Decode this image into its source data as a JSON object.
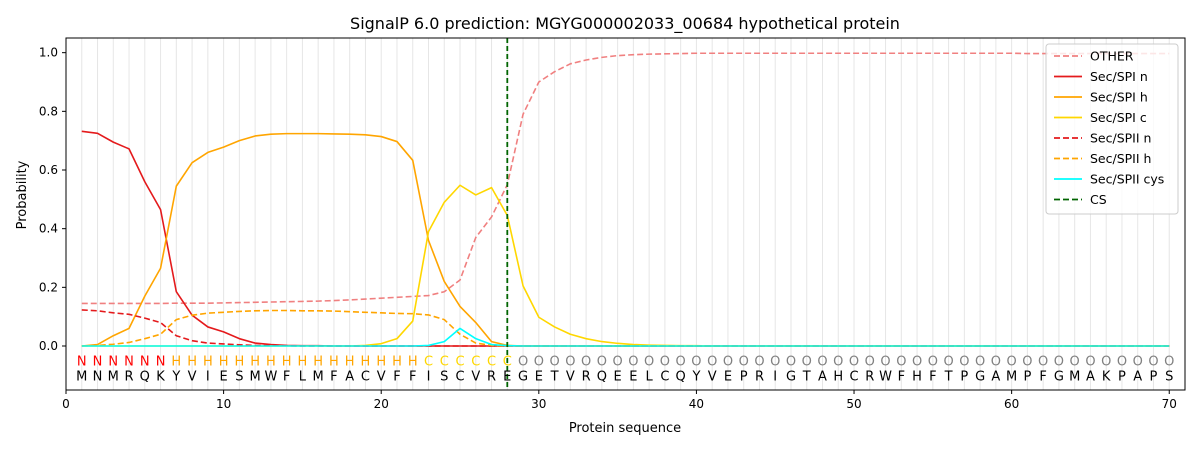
{
  "chart_data": {
    "type": "line",
    "title": "SignalP 6.0 prediction: MGYG000002033_00684 hypothetical protein",
    "xlabel": "Protein sequence",
    "ylabel": "Probability",
    "xlim": [
      0,
      71
    ],
    "ylim": [
      -0.15,
      1.05
    ],
    "x_ticks": [
      0,
      10,
      20,
      30,
      40,
      50,
      60,
      70
    ],
    "y_ticks": [
      0.0,
      0.2,
      0.4,
      0.6,
      0.8,
      1.0
    ],
    "y_tick_labels": [
      "0.0",
      "0.2",
      "0.4",
      "0.6",
      "0.8",
      "1.0"
    ],
    "legend_position": "top-right",
    "grid": "vertical lines at each residue",
    "sequence": [
      "M",
      "N",
      "M",
      "R",
      "Q",
      "K",
      "Y",
      "V",
      "I",
      "E",
      "S",
      "M",
      "W",
      "F",
      "L",
      "M",
      "F",
      "A",
      "C",
      "V",
      "F",
      "F",
      "I",
      "S",
      "C",
      "V",
      "R",
      "E",
      "G",
      "E",
      "T",
      "V",
      "R",
      "Q",
      "E",
      "E",
      "L",
      "C",
      "Q",
      "Y",
      "V",
      "E",
      "P",
      "R",
      "I",
      "G",
      "T",
      "A",
      "H",
      "C",
      "R",
      "W",
      "F",
      "H",
      "F",
      "T",
      "P",
      "G",
      "A",
      "M",
      "P",
      "F",
      "G",
      "M",
      "A",
      "K",
      "P",
      "A",
      "P",
      "S"
    ],
    "region_labels": [
      "N",
      "N",
      "N",
      "N",
      "N",
      "N",
      "H",
      "H",
      "H",
      "H",
      "H",
      "H",
      "H",
      "H",
      "H",
      "H",
      "H",
      "H",
      "H",
      "H",
      "H",
      "H",
      "C",
      "C",
      "C",
      "C",
      "C",
      "C",
      "O",
      "O",
      "O",
      "O",
      "O",
      "O",
      "O",
      "O",
      "O",
      "O",
      "O",
      "O",
      "O",
      "O",
      "O",
      "O",
      "O",
      "O",
      "O",
      "O",
      "O",
      "O",
      "O",
      "O",
      "O",
      "O",
      "O",
      "O",
      "O",
      "O",
      "O",
      "O",
      "O",
      "O",
      "O",
      "O",
      "O",
      "O",
      "O",
      "O",
      "O",
      "O"
    ],
    "region_colors": {
      "N": "#ff0000",
      "H": "#ffa500",
      "C": "#ffd700",
      "O": "#808080"
    },
    "cleavage_site": 28,
    "series": [
      {
        "name": "OTHER",
        "color": "#f08080",
        "dash": true,
        "values": [
          0.145,
          0.145,
          0.145,
          0.145,
          0.145,
          0.145,
          0.146,
          0.146,
          0.146,
          0.147,
          0.148,
          0.149,
          0.15,
          0.151,
          0.152,
          0.153,
          0.155,
          0.157,
          0.16,
          0.163,
          0.166,
          0.169,
          0.172,
          0.185,
          0.225,
          0.37,
          0.44,
          0.55,
          0.79,
          0.9,
          0.935,
          0.962,
          0.975,
          0.984,
          0.99,
          0.993,
          0.995,
          0.996,
          0.997,
          0.998,
          0.998,
          0.998,
          0.998,
          0.998,
          0.998,
          0.998,
          0.998,
          0.998,
          0.998,
          0.998,
          0.998,
          0.998,
          0.998,
          0.998,
          0.998,
          0.998,
          0.998,
          0.998,
          0.998,
          0.998,
          0.997,
          0.997,
          0.997,
          0.997,
          0.997,
          0.997,
          0.997,
          0.997,
          0.997,
          0.997
        ]
      },
      {
        "name": "Sec/SPI n",
        "color": "#e41a1c",
        "dash": false,
        "values": [
          0.732,
          0.725,
          0.695,
          0.672,
          0.56,
          0.465,
          0.185,
          0.105,
          0.065,
          0.048,
          0.025,
          0.01,
          0.005,
          0.002,
          0.001,
          0.001,
          0,
          0,
          0,
          0,
          0,
          0,
          0,
          0,
          0,
          0,
          0,
          0,
          0,
          0,
          0,
          0,
          0,
          0,
          0,
          0,
          0,
          0,
          0,
          0,
          0,
          0,
          0,
          0,
          0,
          0,
          0,
          0,
          0,
          0,
          0,
          0,
          0,
          0,
          0,
          0,
          0,
          0,
          0,
          0,
          0,
          0,
          0,
          0,
          0,
          0,
          0,
          0,
          0,
          0
        ]
      },
      {
        "name": "Sec/SPI h",
        "color": "#ffa500",
        "dash": false,
        "values": [
          0.0,
          0.005,
          0.035,
          0.06,
          0.17,
          0.265,
          0.545,
          0.625,
          0.66,
          0.678,
          0.7,
          0.716,
          0.722,
          0.724,
          0.724,
          0.724,
          0.723,
          0.722,
          0.72,
          0.714,
          0.697,
          0.633,
          0.36,
          0.22,
          0.135,
          0.08,
          0.015,
          0.002,
          0,
          0,
          0,
          0,
          0,
          0,
          0,
          0,
          0,
          0,
          0,
          0,
          0,
          0,
          0,
          0,
          0,
          0,
          0,
          0,
          0,
          0,
          0,
          0,
          0,
          0,
          0,
          0,
          0,
          0,
          0,
          0,
          0,
          0,
          0,
          0,
          0,
          0,
          0,
          0,
          0,
          0
        ]
      },
      {
        "name": "Sec/SPI c",
        "color": "#ffd700",
        "dash": false,
        "values": [
          0,
          0,
          0,
          0,
          0,
          0,
          0,
          0,
          0,
          0,
          0,
          0,
          0,
          0,
          0,
          0,
          0,
          0,
          0.002,
          0.008,
          0.025,
          0.085,
          0.39,
          0.49,
          0.548,
          0.515,
          0.54,
          0.445,
          0.205,
          0.098,
          0.065,
          0.04,
          0.025,
          0.015,
          0.009,
          0.005,
          0.003,
          0.002,
          0.001,
          0.001,
          0,
          0,
          0,
          0,
          0,
          0,
          0,
          0,
          0,
          0,
          0,
          0,
          0,
          0,
          0,
          0,
          0,
          0,
          0,
          0,
          0,
          0,
          0,
          0,
          0,
          0,
          0,
          0,
          0,
          0
        ]
      },
      {
        "name": "Sec/SPII n",
        "color": "#e41a1c",
        "dash": true,
        "values": [
          0.123,
          0.12,
          0.113,
          0.108,
          0.095,
          0.08,
          0.035,
          0.018,
          0.01,
          0.007,
          0.004,
          0.002,
          0.001,
          0.001,
          0,
          0,
          0,
          0,
          0,
          0,
          0,
          0,
          0,
          0,
          0,
          0,
          0,
          0,
          0,
          0,
          0,
          0,
          0,
          0,
          0,
          0,
          0,
          0,
          0,
          0,
          0,
          0,
          0,
          0,
          0,
          0,
          0,
          0,
          0,
          0,
          0,
          0,
          0,
          0,
          0,
          0,
          0,
          0,
          0,
          0,
          0,
          0,
          0,
          0,
          0,
          0,
          0,
          0,
          0,
          0
        ]
      },
      {
        "name": "Sec/SPII h",
        "color": "#ffa500",
        "dash": true,
        "values": [
          0.0,
          0.002,
          0.006,
          0.012,
          0.025,
          0.04,
          0.09,
          0.105,
          0.112,
          0.115,
          0.118,
          0.12,
          0.121,
          0.121,
          0.12,
          0.12,
          0.119,
          0.117,
          0.115,
          0.113,
          0.111,
          0.11,
          0.106,
          0.09,
          0.04,
          0.01,
          0.002,
          0,
          0,
          0,
          0,
          0,
          0,
          0,
          0,
          0,
          0,
          0,
          0,
          0,
          0,
          0,
          0,
          0,
          0,
          0,
          0,
          0,
          0,
          0,
          0,
          0,
          0,
          0,
          0,
          0,
          0,
          0,
          0,
          0,
          0,
          0,
          0,
          0,
          0,
          0,
          0,
          0,
          0,
          0
        ]
      },
      {
        "name": "Sec/SPII cys",
        "color": "#00ffff",
        "dash": false,
        "values": [
          0,
          0,
          0,
          0,
          0,
          0,
          0,
          0,
          0,
          0,
          0,
          0,
          0,
          0,
          0,
          0,
          0,
          0,
          0,
          0,
          0,
          0,
          0.002,
          0.015,
          0.06,
          0.025,
          0.005,
          0.001,
          0,
          0,
          0,
          0,
          0,
          0,
          0,
          0,
          0,
          0,
          0,
          0,
          0,
          0,
          0,
          0,
          0,
          0,
          0,
          0,
          0,
          0,
          0,
          0,
          0,
          0,
          0,
          0,
          0,
          0,
          0,
          0,
          0,
          0,
          0,
          0,
          0,
          0,
          0,
          0,
          0,
          0
        ]
      }
    ],
    "legend_extra": {
      "name": "CS",
      "color": "#006400",
      "dash": true
    }
  }
}
